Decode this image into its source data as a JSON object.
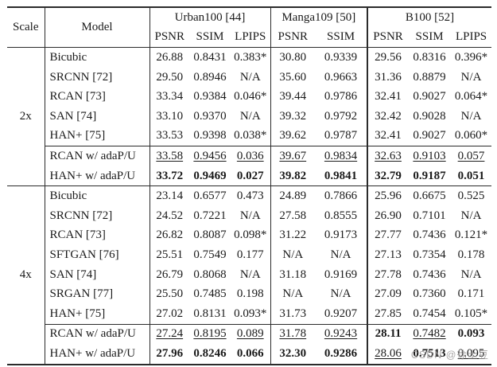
{
  "watermark": {
    "text": "CSDN @徐土豆"
  },
  "table": {
    "scale_header": "Scale",
    "model_header": "Model",
    "groups": [
      {
        "label": "Urban100 [44]",
        "metrics": [
          "PSNR",
          "SSIM",
          "LPIPS"
        ]
      },
      {
        "label": "Manga109 [50]",
        "metrics": [
          "PSNR",
          "SSIM"
        ]
      },
      {
        "label": "B100 [52]",
        "metrics": [
          "PSNR",
          "SSIM",
          "LPIPS"
        ]
      }
    ],
    "sections": [
      {
        "scale": "2x",
        "rows": [
          {
            "model": "Bicubic",
            "values": [
              "26.88",
              "0.8431",
              "0.383*",
              "30.80",
              "0.9339",
              "29.56",
              "0.8316",
              "0.396*"
            ]
          },
          {
            "model": "SRCNN [72]",
            "values": [
              "29.50",
              "0.8946",
              "N/A",
              "35.60",
              "0.9663",
              "31.36",
              "0.8879",
              "N/A"
            ]
          },
          {
            "model": "RCAN [73]",
            "values": [
              "33.34",
              "0.9384",
              "0.046*",
              "39.44",
              "0.9786",
              "32.41",
              "0.9027",
              "0.064*"
            ]
          },
          {
            "model": "SAN [74]",
            "values": [
              "33.10",
              "0.9370",
              "N/A",
              "39.32",
              "0.9792",
              "32.42",
              "0.9028",
              "N/A"
            ]
          },
          {
            "model": "HAN+ [75]",
            "values": [
              "33.53",
              "0.9398",
              "0.038*",
              "39.62",
              "0.9787",
              "32.41",
              "0.9027",
              "0.060*"
            ]
          },
          {
            "model": "RCAN w/ adaP/U",
            "sep": true,
            "values": [
              "33.58",
              "0.9456",
              "0.036",
              "39.67",
              "0.9834",
              "32.63",
              "0.9103",
              "0.057"
            ],
            "styles": [
              "u",
              "u",
              "u",
              "u",
              "u",
              "u",
              "u",
              "u"
            ]
          },
          {
            "model": "HAN+ w/ adaP/U",
            "values": [
              "33.72",
              "0.9469",
              "0.027",
              "39.82",
              "0.9841",
              "32.79",
              "0.9187",
              "0.051"
            ],
            "styles": [
              "b",
              "b",
              "b",
              "b",
              "b",
              "b",
              "b",
              "b"
            ]
          }
        ]
      },
      {
        "scale": "4x",
        "rows": [
          {
            "model": "Bicubic",
            "values": [
              "23.14",
              "0.6577",
              "0.473",
              "24.89",
              "0.7866",
              "25.96",
              "0.6675",
              "0.525"
            ]
          },
          {
            "model": "SRCNN [72]",
            "values": [
              "24.52",
              "0.7221",
              "N/A",
              "27.58",
              "0.8555",
              "26.90",
              "0.7101",
              "N/A"
            ]
          },
          {
            "model": "RCAN [73]",
            "values": [
              "26.82",
              "0.8087",
              "0.098*",
              "31.22",
              "0.9173",
              "27.77",
              "0.7436",
              "0.121*"
            ]
          },
          {
            "model": "SFTGAN [76]",
            "values": [
              "25.51",
              "0.7549",
              "0.177",
              "N/A",
              "N/A",
              "27.13",
              "0.7354",
              "0.178"
            ]
          },
          {
            "model": "SAN [74]",
            "values": [
              "26.79",
              "0.8068",
              "N/A",
              "31.18",
              "0.9169",
              "27.78",
              "0.7436",
              "N/A"
            ]
          },
          {
            "model": "SRGAN [77]",
            "values": [
              "25.50",
              "0.7485",
              "0.198",
              "N/A",
              "N/A",
              "27.09",
              "0.7360",
              "0.171"
            ]
          },
          {
            "model": "HAN+ [75]",
            "values": [
              "27.02",
              "0.8131",
              "0.093*",
              "31.73",
              "0.9207",
              "27.85",
              "0.7454",
              "0.105*"
            ]
          },
          {
            "model": "RCAN w/ adaP/U",
            "sep": true,
            "values": [
              "27.24",
              "0.8195",
              "0.089",
              "31.78",
              "0.9243",
              "28.11",
              "0.7482",
              "0.093"
            ],
            "styles": [
              "u",
              "u",
              "u",
              "u",
              "u",
              "b",
              "u",
              "b"
            ]
          },
          {
            "model": "HAN+ w/ adaP/U",
            "values": [
              "27.96",
              "0.8246",
              "0.066",
              "32.30",
              "0.9286",
              "28.06",
              "0.7513",
              "0.095"
            ],
            "styles": [
              "b",
              "b",
              "b",
              "b",
              "b",
              "u",
              "b",
              "u"
            ]
          }
        ]
      }
    ]
  }
}
